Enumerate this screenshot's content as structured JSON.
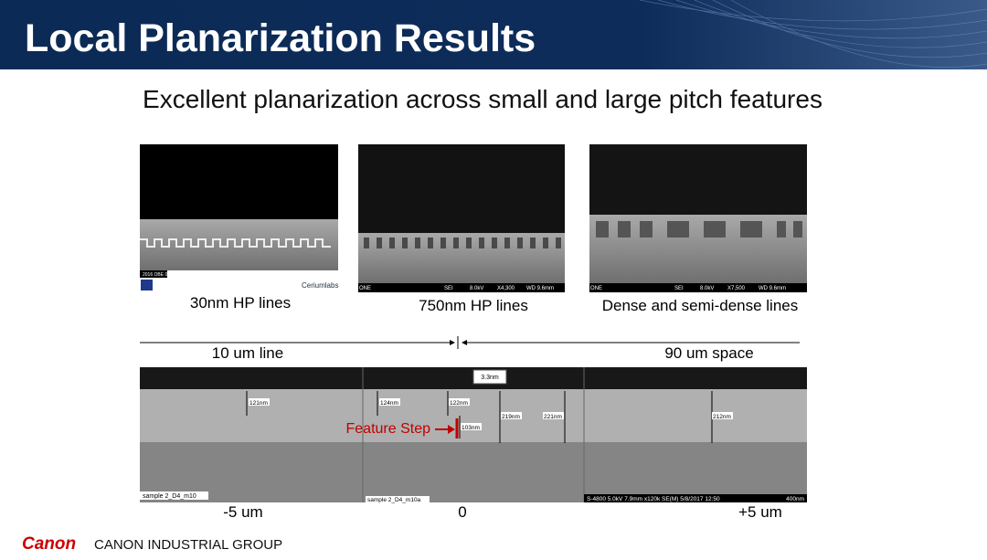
{
  "header": {
    "title": "Local Planarization Results"
  },
  "subtitle": "Excellent planarization across small and large pitch features",
  "images": [
    {
      "caption": "30nm HP lines",
      "info": [
        "2016 OBE 03",
        "Ceriumlabs"
      ]
    },
    {
      "caption": "750nm HP lines",
      "info": [
        "ONE",
        "SEI",
        "8.0kV",
        "X4,300",
        "WD 9.6mm"
      ]
    },
    {
      "caption": "Dense and semi-dense lines",
      "info": [
        "ONE",
        "SEI",
        "8.0kV",
        "X7,500",
        "WD 9.6mm"
      ]
    }
  ],
  "scale": {
    "left_label": "10 um line",
    "right_label": "90 um space"
  },
  "cross_section": {
    "box": "3.3nm",
    "measurements": [
      "121nm",
      "124nm",
      "122nm",
      "219nm",
      "221nm",
      "103nm",
      "212nm"
    ],
    "feature_step": "Feature Step",
    "panel_labels": [
      "sample 2_D4_m10",
      "sample 2_D4_m10a",
      "S-4800 5.0kV 7.9mm x120k SE(M) 5/8/2017 12:50",
      "400nm"
    ],
    "position_labels": [
      "-5 um",
      "0",
      "+5 um"
    ]
  },
  "footer": {
    "logo": "Canon",
    "company": "CANON INDUSTRIAL GROUP"
  }
}
